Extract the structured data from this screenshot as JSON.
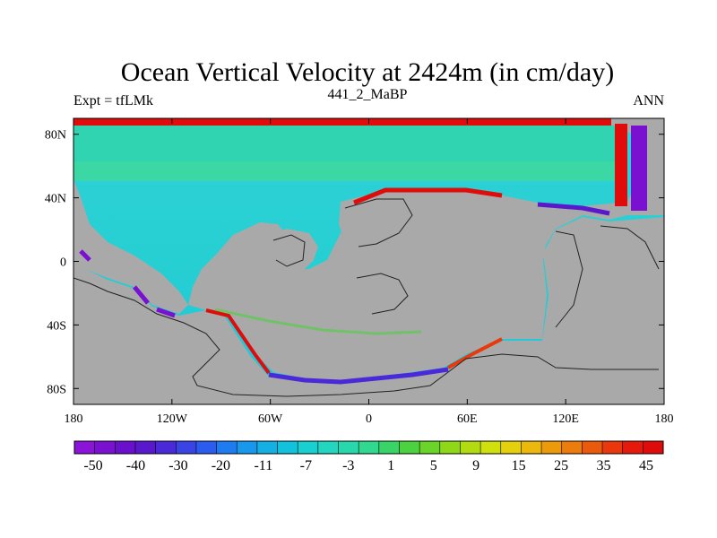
{
  "chart_data": {
    "type": "heatmap",
    "title": "Ocean Vertical Velocity at 2424m (in cm/day)",
    "left_subtitle": "Expt = tfLMk",
    "center_subtitle": "441_2_MaBP",
    "right_subtitle": "ANN",
    "x_ticks": [
      "180",
      "120W",
      "60W",
      "0",
      "60E",
      "120E",
      "180"
    ],
    "y_ticks": [
      "80N",
      "40N",
      "0",
      "40S",
      "80S"
    ],
    "xlim": [
      -180,
      180
    ],
    "ylim": [
      -90,
      90
    ],
    "colorbar": {
      "labels": [
        "-50",
        "-40",
        "-30",
        "-20",
        "-11",
        "-7",
        "-3",
        "1",
        "5",
        "9",
        "15",
        "25",
        "35",
        "45"
      ],
      "colors": [
        "#8a14d8",
        "#7a10d0",
        "#6a10cc",
        "#5a18cc",
        "#4a2ad8",
        "#3a44e4",
        "#2a5cf0",
        "#1e7cf0",
        "#1898ec",
        "#14b0e4",
        "#12c2dc",
        "#18d0d0",
        "#22d6c0",
        "#28d8ac",
        "#30d890",
        "#38d468",
        "#4cd240",
        "#6ad428",
        "#8ed818",
        "#b2dc10",
        "#cfe00c",
        "#e4d00c",
        "#ecb80c",
        "#ec9a0c",
        "#ec7c0c",
        "#ea5a0c",
        "#e8380c",
        "#e61a0c",
        "#e00c0c"
      ]
    },
    "background_field_color": "#30d4b0",
    "land_color": "#a9a9a9"
  }
}
